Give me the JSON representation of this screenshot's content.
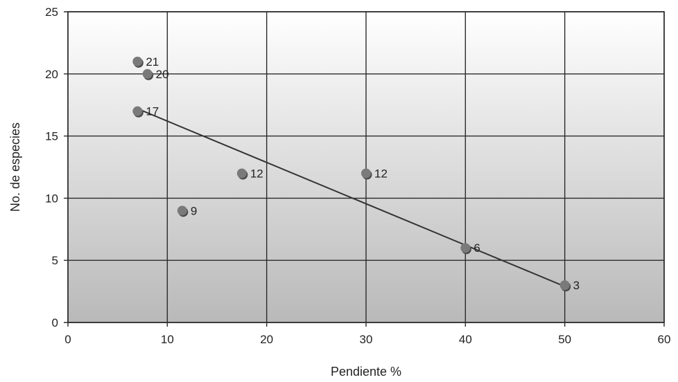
{
  "chart_data": {
    "type": "scatter",
    "title": "",
    "xlabel": "Pendiente %",
    "ylabel": "No. de especies",
    "xlim": [
      0,
      60
    ],
    "ylim": [
      0,
      25
    ],
    "xticks": [
      0,
      10,
      20,
      30,
      40,
      50,
      60
    ],
    "yticks": [
      0,
      5,
      10,
      15,
      20,
      25
    ],
    "grid": true,
    "legend": "none",
    "points": [
      {
        "x": 7,
        "y": 21,
        "label": "21"
      },
      {
        "x": 8,
        "y": 20,
        "label": "20"
      },
      {
        "x": 7,
        "y": 17,
        "label": "17"
      },
      {
        "x": 11.5,
        "y": 9,
        "label": "9"
      },
      {
        "x": 17.5,
        "y": 12,
        "label": "12"
      },
      {
        "x": 30,
        "y": 12,
        "label": "12"
      },
      {
        "x": 40,
        "y": 6,
        "label": "6"
      },
      {
        "x": 50,
        "y": 3,
        "label": "3"
      }
    ],
    "trendline": {
      "x": [
        7,
        50
      ],
      "y": [
        17.2,
        2.9
      ]
    },
    "colors": {
      "marker": "#7a7a7a",
      "marker_edge": "#4a4a4a",
      "line": "#333333",
      "grid": "#2a2a2a",
      "plot_bg_top": "#ffffff",
      "plot_bg_bottom": "#b9b9b9"
    }
  }
}
